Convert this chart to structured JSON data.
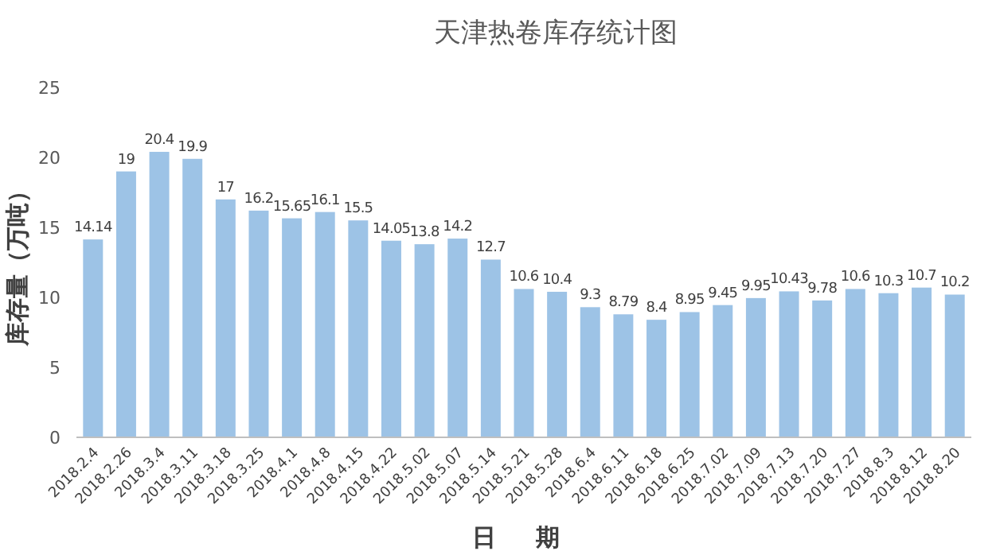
{
  "chart_data": {
    "type": "bar",
    "title": "天津热卷库存统计图",
    "xlabel": "日 期",
    "ylabel": "库存量（万吨）",
    "categories": [
      "2018.2.4",
      "2018.2.26",
      "2018.3.4",
      "2018.3.11",
      "2018.3.18",
      "2018.3.25",
      "2018.4.1",
      "2018.4.8",
      "2018.4.15",
      "2018.4.22",
      "2018.5.02",
      "2018.5.07",
      "2018.5.14",
      "2018.5.21",
      "2018.5.28",
      "2018.6.4",
      "2018.6.11",
      "2018.6.18",
      "2018.6.25",
      "2018.7.02",
      "2018.7.09",
      "2018.7.13",
      "2018.7.20",
      "2018.7.27",
      "2018.8.3",
      "2018.8.12",
      "2018.8.20"
    ],
    "values": [
      14.14,
      19,
      20.4,
      19.9,
      17,
      16.2,
      15.65,
      16.1,
      15.5,
      14.05,
      13.8,
      14.2,
      12.7,
      10.6,
      10.4,
      9.3,
      8.79,
      8.4,
      8.95,
      9.45,
      9.95,
      10.43,
      9.78,
      10.6,
      10.3,
      10.7,
      10.2
    ],
    "color": "#9dc3e6",
    "ylim": [
      0,
      25
    ],
    "yticks": [
      0,
      5,
      10,
      15,
      20,
      25
    ],
    "data_labels": true,
    "grid": false
  }
}
